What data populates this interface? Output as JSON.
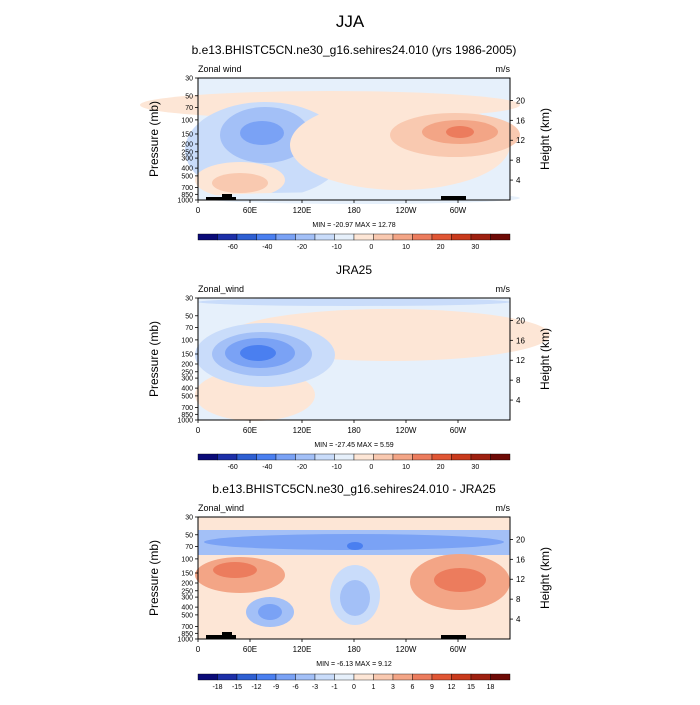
{
  "figure": {
    "title": "JJA"
  },
  "chart_data": [
    {
      "type": "heatmap",
      "title": "b.e13.BHISTC5CN.ne30_g16.sehires24.010 (yrs 1986-2005)",
      "left_label": "Zonal wind",
      "right_label": "m/s",
      "ylabel": "Pressure (mb)",
      "y2label": "Height (km)",
      "x_ticks": [
        "0",
        "60E",
        "120E",
        "180",
        "120W",
        "60W"
      ],
      "y_ticks": [
        "30",
        "50",
        "70",
        "100",
        "150",
        "200",
        "250",
        "300",
        "400",
        "500",
        "700",
        "850",
        "1000"
      ],
      "y2_ticks": [
        "20",
        "16",
        "12",
        "8",
        "4"
      ],
      "stats": "MIN = -20.97  MAX =  12.78",
      "colorbar_labels": [
        "-60",
        "-40",
        "-20",
        "-10",
        "0",
        "10",
        "20",
        "30"
      ],
      "y_scale": "log"
    },
    {
      "type": "heatmap",
      "title": "JRA25",
      "left_label": "Zonal_wind",
      "right_label": "m/s",
      "ylabel": "Pressure (mb)",
      "y2label": "Height (km)",
      "x_ticks": [
        "0",
        "60E",
        "120E",
        "180",
        "120W",
        "60W"
      ],
      "y_ticks": [
        "30",
        "50",
        "70",
        "100",
        "150",
        "200",
        "250",
        "300",
        "400",
        "500",
        "700",
        "850",
        "1000"
      ],
      "y2_ticks": [
        "20",
        "16",
        "12",
        "8",
        "4"
      ],
      "stats": "MIN = -27.45  MAX =   5.59",
      "colorbar_labels": [
        "-60",
        "-40",
        "-20",
        "-10",
        "0",
        "10",
        "20",
        "30"
      ],
      "y_scale": "log"
    },
    {
      "type": "heatmap",
      "title": "b.e13.BHISTC5CN.ne30_g16.sehires24.010 - JRA25",
      "left_label": "Zonal_wind",
      "right_label": "m/s",
      "ylabel": "Pressure (mb)",
      "y2label": "Height (km)",
      "x_ticks": [
        "0",
        "60E",
        "120E",
        "180",
        "120W",
        "60W"
      ],
      "y_ticks": [
        "30",
        "50",
        "70",
        "100",
        "150",
        "200",
        "250",
        "300",
        "400",
        "500",
        "700",
        "850",
        "1000"
      ],
      "y2_ticks": [
        "20",
        "16",
        "12",
        "8",
        "4"
      ],
      "stats": "MIN =  -6.13  MAX =   9.12",
      "colorbar_labels": [
        "-18",
        "-15",
        "-12",
        "-9",
        "-6",
        "-3",
        "-1",
        "0",
        "1",
        "3",
        "6",
        "9",
        "12",
        "15",
        "18"
      ],
      "y_scale": "log"
    }
  ],
  "colors": {
    "scale": [
      "#0a0a78",
      "#1c2fa8",
      "#2e5fd2",
      "#4a7ff0",
      "#7aa2f5",
      "#a3c0f7",
      "#c9dcfa",
      "#e6f0fb",
      "#fde6d6",
      "#f9c9b0",
      "#f3a586",
      "#ec7c5d",
      "#e05634",
      "#c93a1c",
      "#9e2010",
      "#6e0a06"
    ]
  }
}
